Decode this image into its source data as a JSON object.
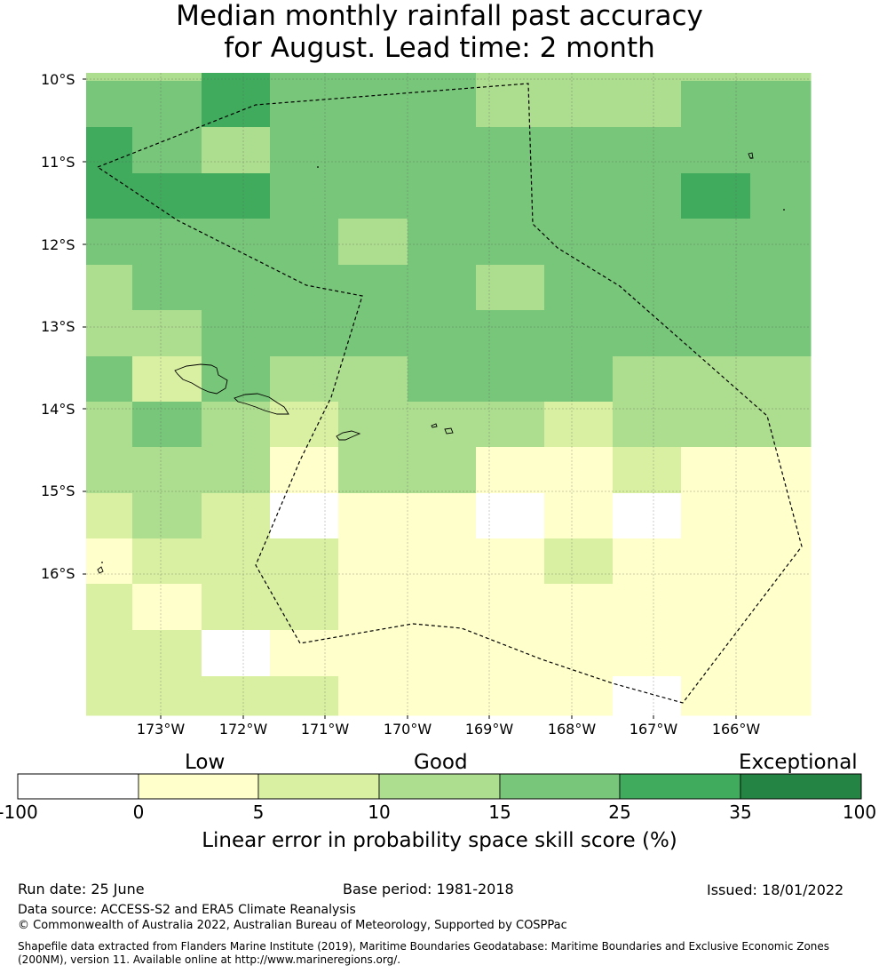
{
  "title": {
    "line1": "Median monthly rainfall past accuracy",
    "line2": "for August. Lead time: 2 month"
  },
  "map": {
    "lat_labels": [
      "10°S",
      "11°S",
      "12°S",
      "13°S",
      "14°S",
      "15°S",
      "16°S"
    ],
    "lon_labels": [
      "173°W",
      "172°W",
      "171°W",
      "170°W",
      "169°W",
      "168°W",
      "167°W",
      "166°W"
    ],
    "grid_cells_skill_class": [
      [
        3,
        3,
        5,
        4,
        4,
        4,
        3,
        3,
        3,
        3,
        3
      ],
      [
        4,
        4,
        5,
        4,
        4,
        4,
        3,
        3,
        3,
        4,
        4
      ],
      [
        5,
        4,
        3,
        4,
        4,
        4,
        4,
        4,
        4,
        4,
        4
      ],
      [
        5,
        5,
        5,
        4,
        4,
        4,
        4,
        4,
        4,
        5,
        4
      ],
      [
        4,
        4,
        4,
        4,
        3,
        4,
        4,
        4,
        4,
        4,
        4
      ],
      [
        3,
        4,
        4,
        4,
        4,
        4,
        3,
        4,
        4,
        4,
        4
      ],
      [
        3,
        3,
        4,
        4,
        4,
        4,
        4,
        4,
        4,
        4,
        4
      ],
      [
        4,
        2,
        4,
        3,
        3,
        4,
        4,
        4,
        3,
        3,
        3
      ],
      [
        3,
        4,
        3,
        2,
        3,
        3,
        3,
        2,
        3,
        3,
        3
      ],
      [
        3,
        3,
        3,
        1,
        3,
        3,
        1,
        1,
        2,
        1,
        1
      ],
      [
        2,
        3,
        2,
        0,
        1,
        1,
        0,
        1,
        0,
        1,
        1
      ],
      [
        1,
        2,
        2,
        2,
        1,
        1,
        1,
        2,
        1,
        1,
        1
      ],
      [
        2,
        1,
        2,
        2,
        1,
        1,
        1,
        1,
        1,
        1,
        1
      ],
      [
        2,
        2,
        0,
        1,
        1,
        1,
        1,
        1,
        1,
        1,
        1
      ],
      [
        2,
        2,
        2,
        2,
        1,
        1,
        1,
        1,
        0,
        1,
        1
      ]
    ]
  },
  "colorbar": {
    "categories": [
      "Low",
      "Good",
      "Exceptional"
    ],
    "ticks": [
      "-100",
      "0",
      "5",
      "10",
      "15",
      "25",
      "35",
      "100"
    ],
    "colors": [
      "#ffffff",
      "#ffffcc",
      "#d9f0a3",
      "#addd8e",
      "#78c679",
      "#41ab5d",
      "#238443"
    ],
    "title": "Linear error in probability space skill score (%)"
  },
  "footer": {
    "run_date": "Run date: 25 June",
    "base_period": "Base period: 1981-2018",
    "issued": "Issued: 18/01/2022",
    "data_source": "Data source: ACCESS-S2 and ERA5 Climate Reanalysis",
    "copyright": "© Commonwealth of Australia 2022, Australian Bureau of Meteorology, Supported by COSPPac",
    "shapefile_line1": "Shapefile data extracted from Flanders Marine Institute (2019), Maritime Boundaries Geodatabase: Maritime Boundaries and Exclusive Economic Zones",
    "shapefile_line2": "(200NM), version 11. Available online at http://www.marineregions.org/."
  }
}
